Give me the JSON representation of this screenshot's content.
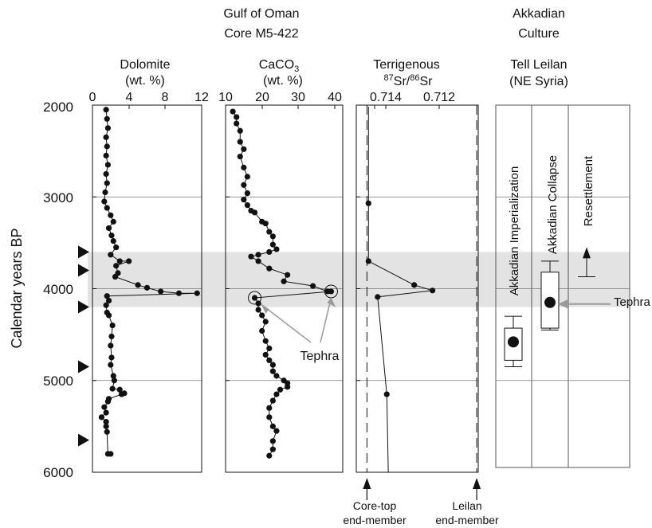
{
  "header": {
    "core_line1": "Gulf of Oman",
    "core_line2": "Core M5-422",
    "culture_line1": "Akkadian",
    "culture_line2": "Culture"
  },
  "yaxis": {
    "label": "Calendar years BP",
    "ticks": [
      "2000",
      "3000",
      "4000",
      "5000",
      "6000"
    ],
    "range": [
      2000,
      6000
    ],
    "inverted": true
  },
  "band": {
    "from": 3600,
    "to": 4200,
    "color": "#e3e3e3"
  },
  "triangles": [
    3600,
    3800,
    4200,
    4850,
    5650
  ],
  "panels": {
    "dolomite": {
      "title": "Dolomite",
      "unit": "(wt. %)",
      "ticks": [
        "0",
        "4",
        "8",
        "12"
      ]
    },
    "caco3": {
      "title_main": "CaCO",
      "title_sub": "3",
      "unit": "(wt. %)",
      "ticks": [
        "10",
        "20",
        "30",
        "40"
      ],
      "tephra_label": "Tephra"
    },
    "sr": {
      "title": "Terrigenous",
      "iso1": "87",
      "iso_sr1": "Sr/",
      "iso2": "86",
      "iso_sr2": "Sr",
      "ticks": [
        "0.714",
        "0.712"
      ],
      "core_top_line1": "Core-top",
      "core_top_line2": "end-member",
      "leilan_line1": "Leilan",
      "leilan_line2": "end-member"
    },
    "tell": {
      "title_line1": "Tell Leilan",
      "title_line2": "(NE Syria)",
      "col1": "Akkadian Imperialization",
      "col2": "Akkadian Collapse",
      "col3": "Resettlement",
      "tephra_label": "Tephra"
    }
  },
  "chart_data": [
    {
      "type": "line",
      "title": "Dolomite",
      "xlabel": "(wt. %)",
      "ylabel": "Calendar years BP",
      "xlim": [
        0,
        12
      ],
      "ylim": [
        6000,
        2000
      ],
      "grid": true,
      "points": [
        [
          1.5,
          2050
        ],
        [
          1.6,
          2150
        ],
        [
          1.7,
          2250
        ],
        [
          1.5,
          2350
        ],
        [
          1.6,
          2450
        ],
        [
          1.5,
          2550
        ],
        [
          1.7,
          2650
        ],
        [
          1.5,
          2750
        ],
        [
          1.6,
          2850
        ],
        [
          1.4,
          2950
        ],
        [
          1.3,
          3050
        ],
        [
          1.6,
          3120
        ],
        [
          2.0,
          3200
        ],
        [
          2.3,
          3270
        ],
        [
          1.8,
          3340
        ],
        [
          2.1,
          3420
        ],
        [
          2.3,
          3480
        ],
        [
          2.6,
          3550
        ],
        [
          2.0,
          3630
        ],
        [
          3.0,
          3700
        ],
        [
          4.0,
          3700
        ],
        [
          2.6,
          3750
        ],
        [
          2.8,
          3830
        ],
        [
          2.5,
          3870
        ],
        [
          5.0,
          3960
        ],
        [
          6.0,
          3990
        ],
        [
          7.5,
          4030
        ],
        [
          9.5,
          4050
        ],
        [
          11.5,
          4050
        ],
        [
          1.6,
          4080
        ],
        [
          1.8,
          4130
        ],
        [
          1.5,
          4180
        ],
        [
          1.6,
          4260
        ],
        [
          1.8,
          4290
        ],
        [
          2.2,
          4400
        ],
        [
          2.1,
          4520
        ],
        [
          2.0,
          4620
        ],
        [
          2.1,
          4750
        ],
        [
          2.0,
          4830
        ],
        [
          2.3,
          4950
        ],
        [
          2.4,
          5000
        ],
        [
          2.2,
          5090
        ],
        [
          3.0,
          5100
        ],
        [
          3.2,
          5150
        ],
        [
          3.5,
          5140
        ],
        [
          1.8,
          5200
        ],
        [
          1.7,
          5230
        ],
        [
          1.3,
          5290
        ],
        [
          1.5,
          5350
        ],
        [
          1.0,
          5400
        ],
        [
          1.5,
          5450
        ],
        [
          1.5,
          5500
        ],
        [
          1.6,
          5560
        ],
        [
          1.7,
          5800
        ],
        [
          2.0,
          5800
        ]
      ]
    },
    {
      "type": "line",
      "title": "CaCO3",
      "xlabel": "(wt. %)",
      "ylabel": "Calendar years BP",
      "xlim": [
        10,
        40
      ],
      "ylim": [
        6000,
        2000
      ],
      "grid": true,
      "points": [
        [
          12,
          2070
        ],
        [
          13,
          2130
        ],
        [
          13,
          2200
        ],
        [
          14,
          2280
        ],
        [
          14,
          2400
        ],
        [
          15,
          2480
        ],
        [
          14,
          2560
        ],
        [
          15,
          2680
        ],
        [
          16,
          2780
        ],
        [
          15,
          2870
        ],
        [
          16,
          2960
        ],
        [
          15,
          3030
        ],
        [
          16,
          3090
        ],
        [
          17,
          3150
        ],
        [
          18,
          3170
        ],
        [
          20,
          3270
        ],
        [
          21,
          3290
        ],
        [
          22,
          3380
        ],
        [
          23,
          3430
        ],
        [
          23,
          3520
        ],
        [
          24,
          3570
        ],
        [
          22,
          3600
        ],
        [
          19,
          3630
        ],
        [
          17,
          3650
        ],
        [
          19,
          3700
        ],
        [
          22,
          3780
        ],
        [
          27,
          3850
        ],
        [
          26,
          3920
        ],
        [
          34,
          3970
        ],
        [
          38,
          4030
        ],
        [
          39,
          4030
        ],
        [
          18,
          4100
        ],
        [
          19,
          4160
        ],
        [
          19,
          4230
        ],
        [
          20,
          4290
        ],
        [
          21,
          4360
        ],
        [
          20,
          4460
        ],
        [
          21,
          4570
        ],
        [
          22,
          4650
        ],
        [
          21,
          4720
        ],
        [
          22,
          4780
        ],
        [
          23,
          4830
        ],
        [
          23,
          4900
        ],
        [
          24,
          4950
        ],
        [
          26,
          5000
        ],
        [
          27,
          5030
        ],
        [
          27,
          5070
        ],
        [
          25,
          5100
        ],
        [
          24,
          5150
        ],
        [
          23,
          5220
        ],
        [
          22,
          5300
        ],
        [
          22,
          5400
        ],
        [
          23,
          5500
        ],
        [
          24,
          5550
        ],
        [
          23,
          5660
        ],
        [
          23,
          5750
        ],
        [
          22,
          5820
        ]
      ],
      "annotations": [
        {
          "text": "Tephra",
          "at": [
            18,
            4100
          ]
        },
        {
          "text": "Tephra",
          "at": [
            39,
            4030
          ]
        }
      ]
    },
    {
      "type": "line",
      "title": "Terrigenous 87Sr/86Sr",
      "xlabel": "",
      "ylabel": "Calendar years BP",
      "xlim": [
        0.7148,
        0.7108
      ],
      "ylim": [
        6000,
        2000
      ],
      "grid": true,
      "points": [
        [
          0.7144,
          3070
        ],
        [
          0.7144,
          3700
        ],
        [
          0.7129,
          3960
        ],
        [
          0.7123,
          4020
        ],
        [
          0.7141,
          4090
        ],
        [
          0.7138,
          5150
        ]
      ],
      "reference_lines": [
        {
          "x": 0.71445,
          "label": "Core-top end-member"
        },
        {
          "x": 0.71085,
          "label": "Leilan end-member"
        }
      ]
    },
    {
      "type": "box",
      "title": "Tell Leilan (NE Syria)",
      "ylabel": "Calendar years BP",
      "ylim": [
        6000,
        2000
      ],
      "series": [
        {
          "name": "Akkadian Imperialization",
          "whisker": [
            4300,
            4850
          ],
          "box": [
            4430,
            4780
          ],
          "point": 4580
        },
        {
          "name": "Akkadian Collapse",
          "whisker": [
            3700,
            4450
          ],
          "box": [
            3820,
            4430
          ],
          "point": 4150
        },
        {
          "name": "Resettlement",
          "whisker": [
            3600,
            3870
          ]
        }
      ],
      "annotations": [
        {
          "text": "Tephra",
          "at": 4150
        }
      ]
    }
  ],
  "colors": {
    "band": "#e3e3e3",
    "ink": "#111111",
    "annotation_arrow": "#9a9a9a",
    "grid": "#777777"
  }
}
